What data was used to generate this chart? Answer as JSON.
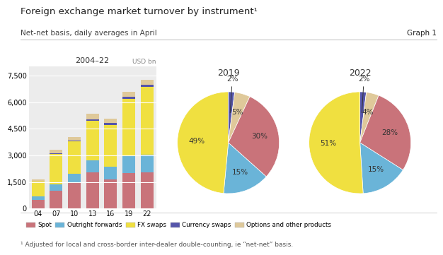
{
  "title": "Foreign exchange market turnover by instrument¹",
  "subtitle": "Net-net basis, daily averages in April",
  "graph_label": "Graph 1",
  "footnote": "¹ Adjusted for local and cross-border inter-dealer double-counting, ie “net-net” basis.",
  "bar_years": [
    "04",
    "07",
    "10",
    "13",
    "16",
    "19",
    "22"
  ],
  "bar_data": {
    "Spot": [
      500,
      1000,
      1500,
      2050,
      1650,
      1987,
      2037
    ],
    "Outright forwards": [
      180,
      362,
      475,
      680,
      700,
      1000,
      1000
    ],
    "FX swaps": [
      830,
      1714,
      1809,
      2228,
      2378,
      3202,
      3822
    ],
    "Currency swaps": [
      21,
      43,
      43,
      54,
      82,
      108,
      108
    ],
    "Options": [
      119,
      212,
      207,
      337,
      254,
      294,
      297
    ]
  },
  "colors": {
    "Spot": "#c9737a",
    "Outright forwards": "#6ab4d8",
    "FX swaps": "#f0e040",
    "Currency swaps": "#5555aa",
    "Options": "#dfc99a"
  },
  "bar_ylim": [
    0,
    8000
  ],
  "bar_yticks": [
    0,
    1500,
    3000,
    4500,
    6000,
    7500
  ],
  "bar_ylabel": "USD bn",
  "bar_title": "2004–22",
  "pie2019_title": "2019",
  "pie2022_title": "2022",
  "pie_order": [
    "FX swaps",
    "Outright forwards",
    "Spot",
    "Options",
    "Currency swaps"
  ],
  "pie2019": {
    "Spot": 30,
    "Outright forwards": 15,
    "FX swaps": 49,
    "Currency swaps": 2,
    "Options": 5
  },
  "pie2022": {
    "Spot": 28,
    "Outright forwards": 15,
    "FX swaps": 51,
    "Currency swaps": 2,
    "Options": 4
  },
  "legend_labels": [
    "Spot",
    "Outright forwards",
    "FX swaps",
    "Currency swaps",
    "Options and other products"
  ],
  "bg_color": "#ececec",
  "fig_bg_color": "#ffffff"
}
